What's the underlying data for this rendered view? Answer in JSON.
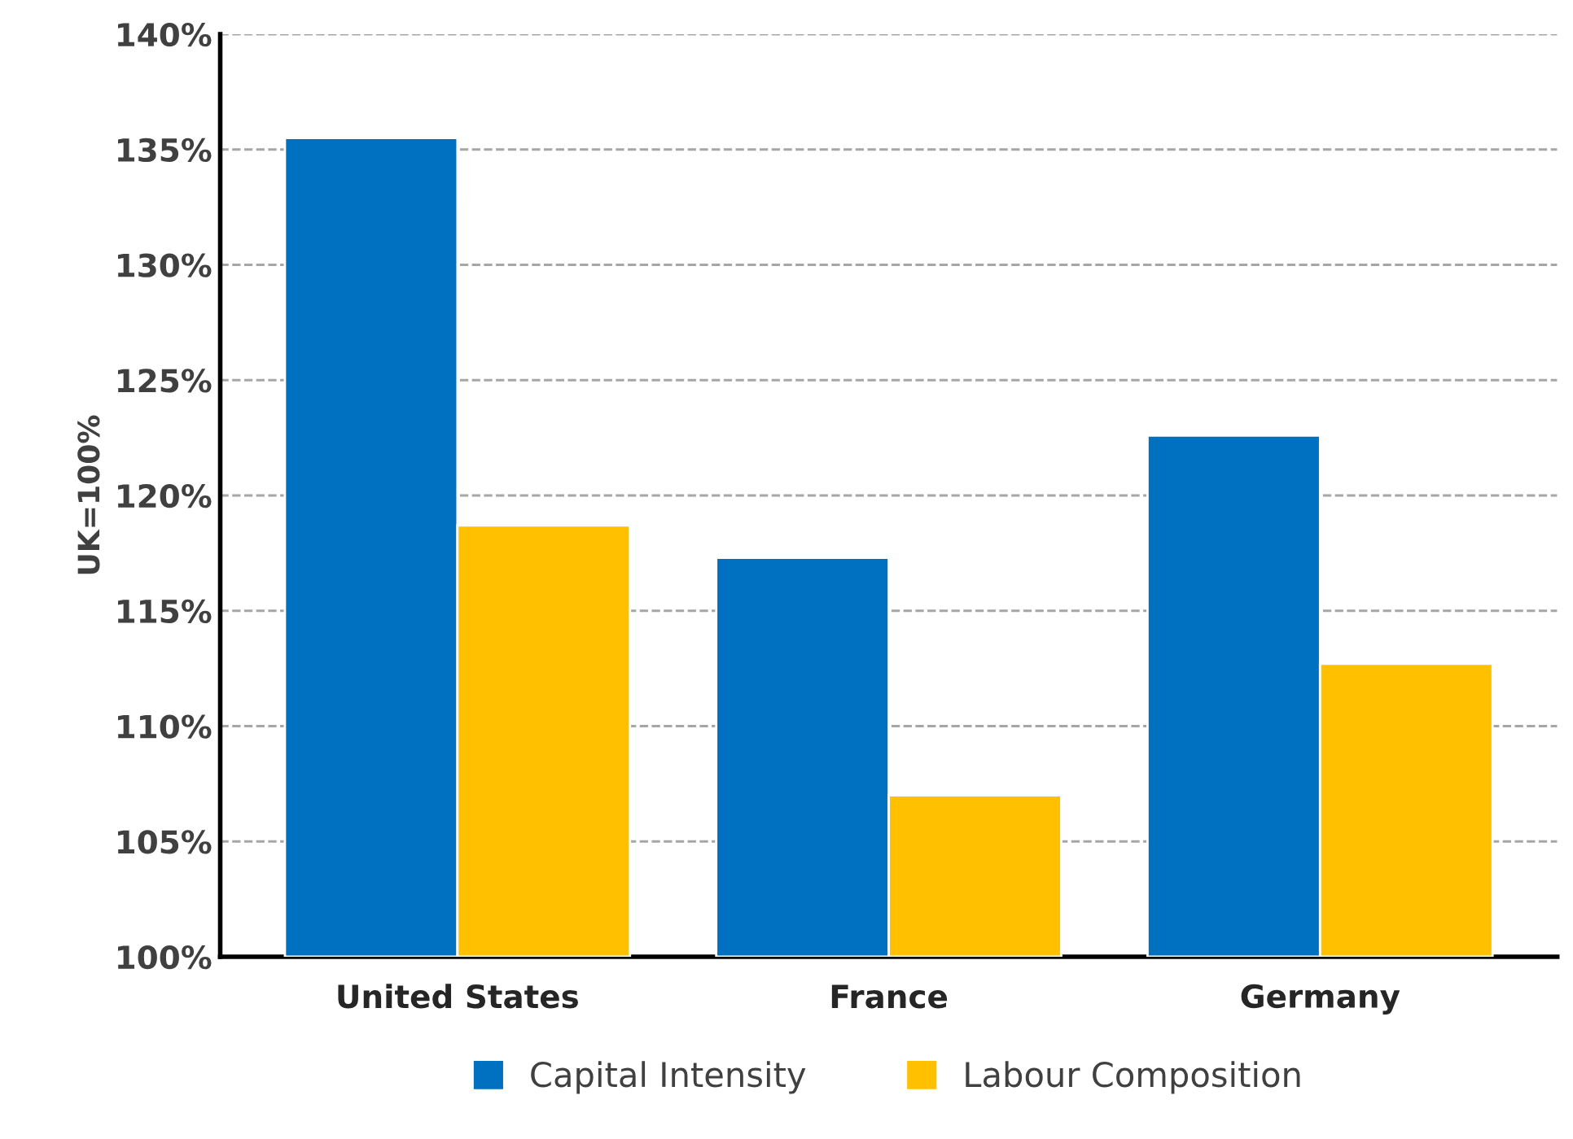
{
  "chart_data": {
    "type": "bar",
    "ylabel": "UK=100%",
    "categories": [
      "United States",
      "France",
      "Germany"
    ],
    "series": [
      {
        "name": "Capital Intensity",
        "color": "#0070c0",
        "values": [
          135.5,
          117.3,
          122.6
        ]
      },
      {
        "name": "Labour Composition",
        "color": "#ffc000",
        "values": [
          118.7,
          107.0,
          112.7
        ]
      }
    ],
    "ylim": [
      100,
      140
    ],
    "yticks": [
      {
        "value": 100,
        "label": "100%"
      },
      {
        "value": 105,
        "label": "105%"
      },
      {
        "value": 110,
        "label": "110%"
      },
      {
        "value": 115,
        "label": "115%"
      },
      {
        "value": 120,
        "label": "120%"
      },
      {
        "value": 125,
        "label": "125%"
      },
      {
        "value": 130,
        "label": "130%"
      },
      {
        "value": 135,
        "label": "135%"
      },
      {
        "value": 140,
        "label": "140%"
      }
    ],
    "grid": "y",
    "legend": "bottom"
  }
}
